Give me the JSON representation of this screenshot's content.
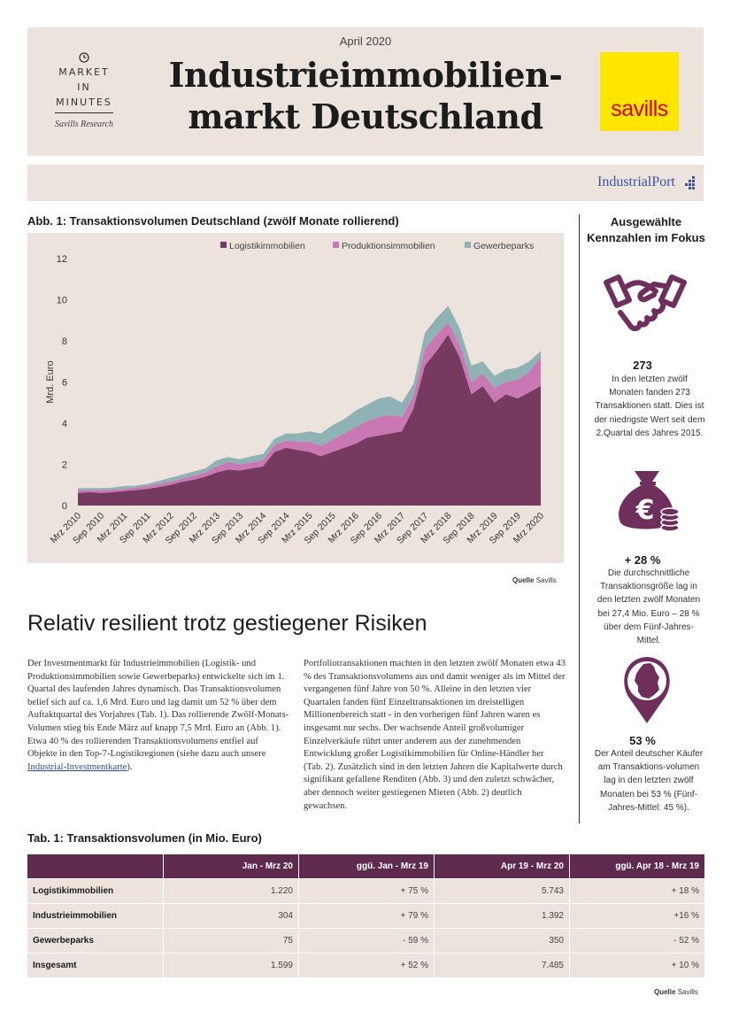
{
  "header": {
    "date": "April 2020",
    "title_line1": "Industrieimmobilien-",
    "title_line2": "markt Deutschland",
    "market": "MARKET",
    "in": "IN",
    "minutes": "MINUTES",
    "research": "Savills Research",
    "logo_text": "savills",
    "partner_logo": "IndustrialPort"
  },
  "figure": {
    "caption": "Abb. 1: Transaktionsvolumen Deutschland (zwölf Monate rollierend)",
    "source_label": "Quelle",
    "source": "Savills"
  },
  "chart_data": {
    "type": "area",
    "stacked": true,
    "ylabel": "Mrd. Euro",
    "xlabel": "",
    "ylim": [
      0,
      12
    ],
    "yticks": [
      0,
      2,
      4,
      6,
      8,
      10,
      12
    ],
    "grid": false,
    "legend_position": "top-right",
    "colors": [
      "#76395f",
      "#c978b4",
      "#8fb2b5"
    ],
    "x_tick_labels": [
      "Mrz 2010",
      "Sep 2010",
      "Mrz 2011",
      "Sep 2011",
      "Mrz 2012",
      "Sep 2012",
      "Mrz 2013",
      "Sep 2013",
      "Mrz 2014",
      "Sep 2014",
      "Mrz 2015",
      "Sep 2015",
      "Mrz 2016",
      "Sep 2016",
      "Mrz 2017",
      "Sep 2017",
      "Mrz 2018",
      "Sep 2018",
      "Mrz 2019",
      "Sep 2019",
      "Mrz 2020"
    ],
    "x": [
      "Mrz 2010",
      "Jun 2010",
      "Sep 2010",
      "Dez 2010",
      "Mrz 2011",
      "Jun 2011",
      "Sep 2011",
      "Dez 2011",
      "Mrz 2012",
      "Jun 2012",
      "Sep 2012",
      "Dez 2012",
      "Mrz 2013",
      "Jun 2013",
      "Sep 2013",
      "Dez 2013",
      "Mrz 2014",
      "Jun 2014",
      "Sep 2014",
      "Dez 2014",
      "Mrz 2015",
      "Jun 2015",
      "Sep 2015",
      "Dez 2015",
      "Mrz 2016",
      "Jun 2016",
      "Sep 2016",
      "Dez 2016",
      "Mrz 2017",
      "Jun 2017",
      "Sep 2017",
      "Dez 2017",
      "Mrz 2018",
      "Jun 2018",
      "Sep 2018",
      "Dez 2018",
      "Mrz 2019",
      "Jun 2019",
      "Sep 2019",
      "Dez 2019",
      "Mrz 2020"
    ],
    "series": [
      {
        "name": "Logistikimmobilien",
        "values": [
          0.6,
          0.65,
          0.6,
          0.65,
          0.7,
          0.75,
          0.8,
          0.9,
          1.0,
          1.15,
          1.25,
          1.4,
          1.6,
          1.75,
          1.7,
          1.8,
          1.9,
          2.6,
          2.8,
          2.7,
          2.6,
          2.4,
          2.6,
          2.8,
          3.0,
          3.3,
          3.4,
          3.5,
          3.6,
          4.7,
          6.8,
          7.5,
          8.3,
          7.2,
          5.4,
          5.8,
          5.0,
          5.4,
          5.2,
          5.5,
          5.8
        ]
      },
      {
        "name": "Produktionsimmobilien",
        "values": [
          0.15,
          0.1,
          0.15,
          0.12,
          0.1,
          0.12,
          0.15,
          0.15,
          0.15,
          0.15,
          0.2,
          0.2,
          0.3,
          0.35,
          0.3,
          0.3,
          0.3,
          0.35,
          0.35,
          0.4,
          0.5,
          0.5,
          0.6,
          0.7,
          0.8,
          0.8,
          0.9,
          0.9,
          0.7,
          0.6,
          0.8,
          0.8,
          0.6,
          0.6,
          0.6,
          0.6,
          0.7,
          0.6,
          0.9,
          1.0,
          1.4
        ]
      },
      {
        "name": "Gewerbeparks",
        "values": [
          0.1,
          0.1,
          0.1,
          0.1,
          0.15,
          0.1,
          0.1,
          0.15,
          0.2,
          0.2,
          0.2,
          0.2,
          0.3,
          0.25,
          0.25,
          0.3,
          0.3,
          0.3,
          0.35,
          0.4,
          0.5,
          0.6,
          0.7,
          0.7,
          0.8,
          0.8,
          0.9,
          0.9,
          0.7,
          0.6,
          0.8,
          0.8,
          0.8,
          0.8,
          0.8,
          0.6,
          0.6,
          0.6,
          0.6,
          0.5,
          0.3
        ]
      }
    ]
  },
  "section": {
    "heading": "Relativ resilient trotz gestiegener Risiken",
    "col1_text": "Der Investmentmarkt für Industrieimmobilien (Logistik- und Produktionsimmobilien sowie Gewerbeparks) entwickelte sich im 1. Quartal des laufenden Jahres dynamisch. Das Transaktionsvolumen belief sich auf ca. 1,6 Mrd. Euro und lag damit um 52 % über dem Auftaktquartal des Vorjahres (Tab. 1). Das rollierende Zwölf-Monats-Volumen stieg bis Ende März auf knapp 7,5 Mrd. Euro an (Abb. 1). Etwa 40 % des rollierenden Transaktionsvolumens entfiel auf Objekte in den Top-7-Logistikregionen (siehe dazu auch unsere ",
    "col1_link": "Industrial-Investmentkarte",
    "col1_end": ").",
    "col2_text": "Portfoliotransaktionen machten in den letzten zwölf Monaten etwa 43 % des Transaktionsvolumens aus und damit weniger als im Mittel der vergangenen fünf Jahre von 50 %. Alleine in den letzten vier Quartalen fanden fünf Einzeltransaktionen im dreistelligen Millionenbereich statt - in den vorherigen fünf Jahren waren es insgesamt nur sechs. Der wachsende Anteil großvolumiger Einzelverkäufe rührt unter anderem aus der zunehmenden Entwicklung großer Logistikimmobilien für Online-Händler her (Tab. 2). Zusätzlich sind in den letzten Jahren die Kapitalwerte durch signifikant gefallene Renditen (Abb. 3) und den zuletzt schwächer, aber dennoch weiter gestiegenen Mieten (Abb. 2) deutlich gewachsen."
  },
  "sidebar": {
    "heading": "Ausgewählte Kennzahlen im Fokus",
    "items": [
      {
        "value": "273",
        "text": "In den letzten zwölf Monaten fanden 273 Transaktionen statt. Dies ist der niedrigste Wert seit dem 2.Quartal des Jahres 2015.",
        "icon": "handshake-icon"
      },
      {
        "value": "+ 28 %",
        "text": "Die durchschnittliche Transaktionsgröße lag in den letzten zwölf Monaten bei 27,4 Mio. Euro – 28 % über dem Fünf-Jahres-Mittel.",
        "icon": "euro-moneybag-icon"
      },
      {
        "value": "53 %",
        "text": "Der Anteil deutscher Käufer am Transaktions-volumen lag in den letzten zwölf Monaten bei 53 % (Fünf-Jahres-Mittel: 45 %).",
        "icon": "germany-map-pin-icon"
      }
    ]
  },
  "table": {
    "caption": "Tab. 1: Transaktionsvolumen (in Mio. Euro)",
    "headers": [
      "",
      "Jan - Mrz 20",
      "ggü. Jan - Mrz 19",
      "Apr 19 - Mrz 20",
      "ggü. Apr 18 - Mrz 19"
    ],
    "rows": [
      [
        "Logistikimmobilien",
        "1.220",
        "+ 75 %",
        "5.743",
        "+ 18 %"
      ],
      [
        "Industrieimmobilien",
        "304",
        "+ 79 %",
        "1.392",
        "+16 %"
      ],
      [
        "Gewerbeparks",
        "75",
        "- 59 %",
        "350",
        "- 52 %"
      ],
      [
        "Insgesamt",
        "1.599",
        "+ 52 %",
        "7.485",
        "+ 10 %"
      ]
    ],
    "source_label": "Quelle",
    "source": "Savills"
  },
  "colors": {
    "plum": "#5e2b4f",
    "beige": "#ebe3dc",
    "savills_yellow": "#ffe600",
    "savills_red": "#d5001c"
  }
}
